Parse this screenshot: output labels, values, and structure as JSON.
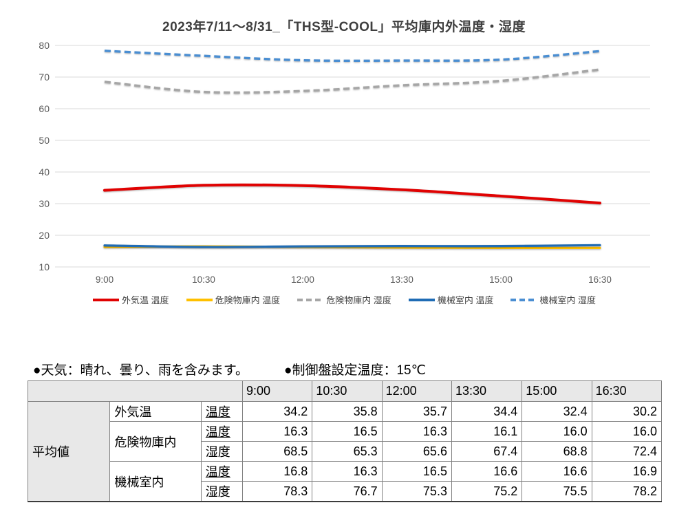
{
  "title": "2023年7/11～8/31_「THS型-COOL」平均庫内外温度・湿度",
  "notes": {
    "weather": "●天気：晴れ、曇り、雨を含みます。",
    "setpoint": "●制御盤設定温度：15℃"
  },
  "chart_data": {
    "type": "line",
    "title": "2023年7/11～8/31_「THS型-COOL」平均庫内外温度・湿度",
    "categories": [
      "9:00",
      "10:30",
      "12:00",
      "13:30",
      "15:00",
      "16:30"
    ],
    "series": [
      {
        "name": "外気温 温度",
        "key": "outdoor-temp",
        "color": "#e00202",
        "style": "solid",
        "width": 4,
        "values": [
          34.2,
          35.8,
          35.7,
          34.4,
          32.4,
          30.2
        ]
      },
      {
        "name": "危険物庫内 温度",
        "key": "hazmat-temp",
        "color": "#ffc000",
        "style": "solid",
        "width": 3.2,
        "values": [
          16.3,
          16.5,
          16.3,
          16.1,
          16.0,
          16.0
        ]
      },
      {
        "name": "危険物庫内 湿度",
        "key": "hazmat-humidity",
        "color": "#a6a6a6",
        "style": "dashed",
        "width": 3.4,
        "values": [
          68.5,
          65.3,
          65.6,
          67.4,
          68.8,
          72.4
        ]
      },
      {
        "name": "機械室内 温度",
        "key": "machine-temp",
        "color": "#1f6cb5",
        "style": "solid",
        "width": 3.2,
        "values": [
          16.8,
          16.3,
          16.5,
          16.6,
          16.6,
          16.9
        ]
      },
      {
        "name": "機械室内 湿度",
        "key": "machine-humidity",
        "color": "#4a8ed2",
        "style": "dashed",
        "width": 3.4,
        "values": [
          78.3,
          76.7,
          75.3,
          75.2,
          75.5,
          78.2
        ]
      }
    ],
    "ylim": [
      10,
      80
    ],
    "ytick_step": 10,
    "grid": true,
    "gridline_color": "#d9d9d9",
    "axis_text_color": "#595959",
    "legend_position": "bottom"
  },
  "table": {
    "time_headers": [
      "9:00",
      "10:30",
      "12:00",
      "13:30",
      "15:00",
      "16:30"
    ],
    "group_label": "平均値",
    "rows": [
      {
        "location": "外気温",
        "metric": "温度",
        "values": [
          "34.2",
          "35.8",
          "35.7",
          "34.4",
          "32.4",
          "30.2"
        ]
      },
      {
        "location": "危険物庫内",
        "metric": "温度",
        "values": [
          "16.3",
          "16.5",
          "16.3",
          "16.1",
          "16.0",
          "16.0"
        ]
      },
      {
        "location": "",
        "metric": "湿度",
        "values": [
          "68.5",
          "65.3",
          "65.6",
          "67.4",
          "68.8",
          "72.4"
        ]
      },
      {
        "location": "機械室内",
        "metric": "温度",
        "values": [
          "16.8",
          "16.3",
          "16.5",
          "16.6",
          "16.6",
          "16.9"
        ]
      },
      {
        "location": "",
        "metric": "湿度",
        "values": [
          "78.3",
          "76.7",
          "75.3",
          "75.2",
          "75.5",
          "78.2"
        ]
      }
    ]
  }
}
